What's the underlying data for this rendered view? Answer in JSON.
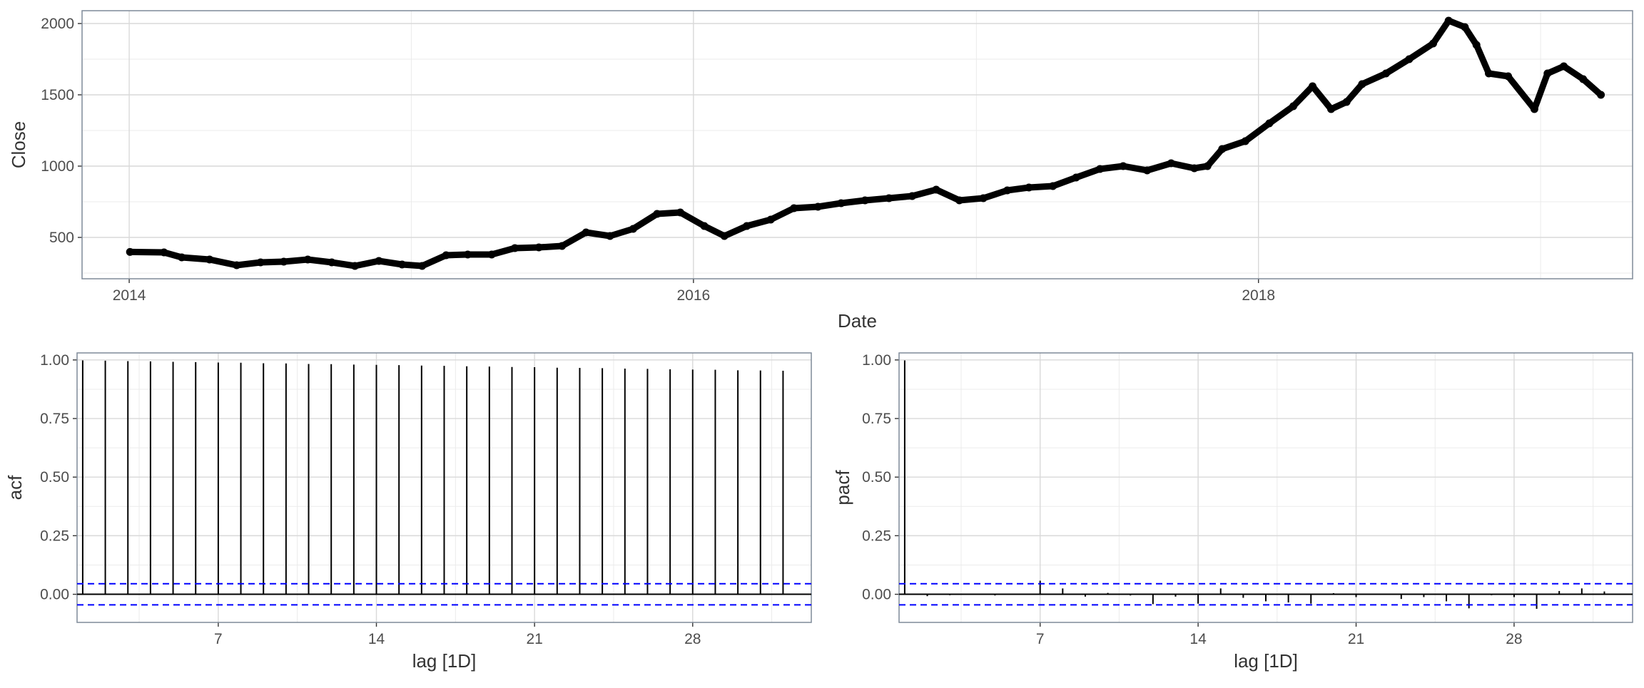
{
  "chart_data": [
    {
      "type": "scatter",
      "xlabel": "Date",
      "ylabel": "Close",
      "x_ticks": [
        "2014",
        "2016",
        "2018"
      ],
      "y_ticks": [
        500,
        1000,
        1500,
        2000
      ],
      "xlim": [
        "2013-11-01",
        "2019-04-30"
      ],
      "ylim": [
        210,
        2090
      ],
      "grid": true,
      "series": [
        {
          "x": [
            "2014-01-02",
            "2014-02-15",
            "2014-03-10",
            "2014-04-15",
            "2014-05-20",
            "2014-06-20",
            "2014-07-20",
            "2014-08-20",
            "2014-09-20",
            "2014-10-20",
            "2014-11-20",
            "2014-12-20",
            "2015-01-15",
            "2015-02-15",
            "2015-03-15",
            "2015-04-15",
            "2015-05-15",
            "2015-06-15",
            "2015-07-15",
            "2015-08-15",
            "2015-09-15",
            "2015-10-15",
            "2015-11-15",
            "2015-12-15",
            "2016-01-15",
            "2016-02-10",
            "2016-03-10",
            "2016-04-10",
            "2016-05-10",
            "2016-06-10",
            "2016-07-10",
            "2016-08-10",
            "2016-09-10",
            "2016-10-10",
            "2016-11-10",
            "2016-12-10",
            "2017-01-10",
            "2017-02-10",
            "2017-03-10",
            "2017-04-10",
            "2017-05-10",
            "2017-06-10",
            "2017-07-10",
            "2017-08-10",
            "2017-09-10",
            "2017-10-10",
            "2017-10-27",
            "2017-11-15",
            "2017-12-15",
            "2018-01-15",
            "2018-02-15",
            "2018-03-12",
            "2018-04-05",
            "2018-04-25",
            "2018-05-15",
            "2018-06-15",
            "2018-07-15",
            "2018-08-15",
            "2018-09-04",
            "2018-09-25",
            "2018-10-10",
            "2018-10-26",
            "2018-11-20",
            "2018-12-24",
            "2019-01-10",
            "2019-01-31",
            "2019-02-25",
            "2019-03-20"
          ],
          "y": [
            398,
            395,
            360,
            345,
            305,
            325,
            330,
            345,
            325,
            300,
            335,
            310,
            300,
            375,
            380,
            380,
            425,
            430,
            440,
            535,
            510,
            560,
            665,
            675,
            580,
            510,
            580,
            625,
            705,
            715,
            740,
            760,
            775,
            790,
            835,
            760,
            775,
            830,
            850,
            860,
            920,
            980,
            1000,
            970,
            1020,
            985,
            1000,
            1120,
            1175,
            1300,
            1420,
            1560,
            1400,
            1450,
            1575,
            1650,
            1750,
            1860,
            2020,
            1975,
            1850,
            1650,
            1630,
            1400,
            1650,
            1700,
            1610,
            1500
          ]
        }
      ]
    },
    {
      "type": "bar",
      "xlabel": "lag [1D]",
      "ylabel": "acf",
      "x_ticks": [
        7,
        14,
        21,
        28
      ],
      "y_ticks": [
        "0.00",
        "0.25",
        "0.50",
        "0.75",
        "1.00"
      ],
      "xlim": [
        0.75,
        33.25
      ],
      "ylim": [
        -0.12,
        1.03
      ],
      "grid": true,
      "lags": [
        1,
        2,
        3,
        4,
        5,
        6,
        7,
        8,
        9,
        10,
        11,
        12,
        13,
        14,
        15,
        16,
        17,
        18,
        19,
        20,
        21,
        22,
        23,
        24,
        25,
        26,
        27,
        28,
        29,
        30,
        31,
        32
      ],
      "values": [
        0.998,
        0.997,
        0.995,
        0.994,
        0.992,
        0.991,
        0.989,
        0.988,
        0.986,
        0.985,
        0.983,
        0.982,
        0.98,
        0.979,
        0.978,
        0.976,
        0.975,
        0.973,
        0.972,
        0.97,
        0.969,
        0.967,
        0.966,
        0.965,
        0.963,
        0.962,
        0.96,
        0.959,
        0.958,
        0.956,
        0.955,
        0.954
      ],
      "confidence_bound": 0.045
    },
    {
      "type": "bar",
      "xlabel": "lag [1D]",
      "ylabel": "pacf",
      "x_ticks": [
        7,
        14,
        21,
        28
      ],
      "y_ticks": [
        "0.00",
        "0.25",
        "0.50",
        "0.75",
        "1.00"
      ],
      "xlim": [
        0.75,
        33.25
      ],
      "ylim": [
        -0.12,
        1.03
      ],
      "grid": true,
      "lags": [
        1,
        2,
        3,
        4,
        5,
        6,
        7,
        8,
        9,
        10,
        11,
        12,
        13,
        14,
        15,
        16,
        17,
        18,
        19,
        20,
        21,
        22,
        23,
        24,
        25,
        26,
        27,
        28,
        29,
        30,
        31,
        32
      ],
      "values": [
        0.998,
        -0.008,
        -0.004,
        0.003,
        -0.005,
        0.002,
        0.058,
        0.025,
        -0.01,
        0.006,
        -0.005,
        -0.042,
        -0.01,
        -0.04,
        0.025,
        -0.015,
        -0.03,
        -0.035,
        -0.04,
        0.005,
        -0.012,
        0.003,
        -0.02,
        -0.012,
        -0.03,
        -0.06,
        -0.004,
        -0.012,
        -0.062,
        0.014,
        0.025,
        0.012
      ],
      "confidence_bound": 0.045
    }
  ]
}
